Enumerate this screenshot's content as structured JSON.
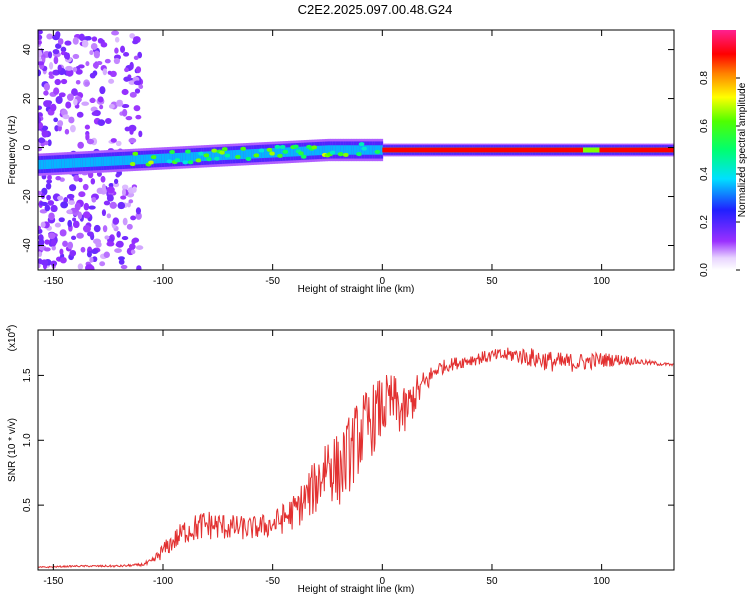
{
  "title": "C2E2.2025.097.00.48.G24",
  "colors": {
    "snr_line": "#e23030",
    "axis": "#000000",
    "background": "#ffffff"
  },
  "chart_data": [
    {
      "type": "heatmap",
      "title": "C2E2.2025.097.00.48.G24",
      "xlabel": "Height of straight line (km)",
      "ylabel": "Frequency (Hz)",
      "xlim": [
        -157,
        133
      ],
      "ylim": [
        -50,
        48
      ],
      "x_ticks": [
        -150,
        -100,
        -50,
        0,
        50,
        100
      ],
      "y_ticks": [
        -40,
        -20,
        0,
        20,
        40
      ],
      "colorbar": {
        "label": "Normalized spectral amplitude",
        "range": [
          0,
          1
        ],
        "ticks": [
          "0.0",
          "0.2",
          "0.4",
          "0.6",
          "0.8"
        ],
        "colormap": "rainbow (white-violet-blue-cyan-green-yellow-red-pink)"
      },
      "features": [
        {
          "description": "noise scatter",
          "x_range": [
            -157,
            -110
          ],
          "freq_range": [
            -50,
            48
          ]
        },
        {
          "description": "main signal band",
          "x_range": [
            -157,
            133
          ],
          "center_freq_start": -7,
          "center_freq_end": -1
        },
        {
          "description": "high amplitude ridge",
          "x_range": [
            0,
            133
          ],
          "center_freq": -1
        }
      ],
      "grid": false
    },
    {
      "type": "line",
      "xlabel": "Height of straight line (km)",
      "ylabel": "SNR (10 * v/v)",
      "y_multiplier": "(x10^4)",
      "xlim": [
        -157,
        133
      ],
      "ylim": [
        0,
        1.85
      ],
      "x_ticks": [
        -150,
        -100,
        -50,
        0,
        50,
        100
      ],
      "y_ticks": [
        "0.5",
        "1.0",
        "1.5"
      ],
      "y_tick_values": [
        0.5,
        1.0,
        1.5
      ],
      "series": [
        {
          "x": [
            -157,
            -140,
            -120,
            -110,
            -105,
            -100,
            -90,
            -80,
            -70,
            -60,
            -50,
            -40,
            -30,
            -25,
            -20,
            -15,
            -10,
            -5,
            0,
            5,
            10,
            15,
            20,
            25,
            30,
            40,
            50,
            60,
            70,
            80,
            90,
            100,
            110,
            120,
            133
          ],
          "values": [
            0.02,
            0.03,
            0.03,
            0.04,
            0.06,
            0.15,
            0.3,
            0.35,
            0.33,
            0.32,
            0.35,
            0.45,
            0.65,
            0.85,
            0.75,
            0.9,
            1.05,
            1.15,
            1.25,
            1.3,
            1.2,
            1.35,
            1.45,
            1.55,
            1.58,
            1.62,
            1.65,
            1.66,
            1.63,
            1.6,
            1.6,
            1.62,
            1.62,
            1.6,
            1.58
          ],
          "noise": [
            0.005,
            0.006,
            0.008,
            0.01,
            0.03,
            0.06,
            0.1,
            0.12,
            0.1,
            0.09,
            0.1,
            0.14,
            0.22,
            0.3,
            0.28,
            0.3,
            0.3,
            0.28,
            0.25,
            0.22,
            0.2,
            0.15,
            0.1,
            0.06,
            0.05,
            0.05,
            0.05,
            0.06,
            0.08,
            0.08,
            0.07,
            0.06,
            0.04,
            0.02,
            0.01
          ]
        }
      ],
      "grid": false
    }
  ]
}
